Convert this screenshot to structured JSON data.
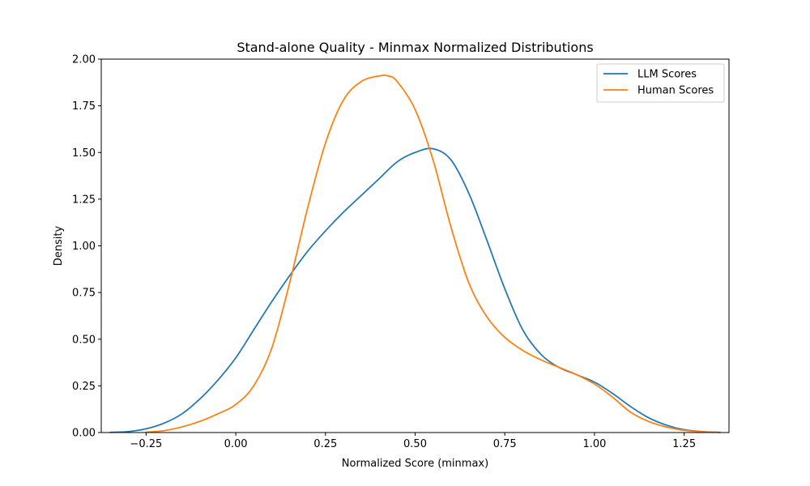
{
  "chart_data": {
    "type": "line",
    "title": "Stand-alone Quality - Minmax Normalized Distributions",
    "xlabel": "Normalized Score (minmax)",
    "ylabel": "Density",
    "xlim": [
      -0.375,
      1.375
    ],
    "ylim": [
      0,
      2.0
    ],
    "xticks": [
      -0.25,
      0.0,
      0.25,
      0.5,
      0.75,
      1.0,
      1.25
    ],
    "xtick_labels": [
      "−0.25",
      "0.00",
      "0.25",
      "0.50",
      "0.75",
      "1.00",
      "1.25"
    ],
    "yticks": [
      0.0,
      0.25,
      0.5,
      0.75,
      1.0,
      1.25,
      1.5,
      1.75,
      2.0
    ],
    "ytick_labels": [
      "0.00",
      "0.25",
      "0.50",
      "0.75",
      "1.00",
      "1.25",
      "1.50",
      "1.75",
      "2.00"
    ],
    "grid": false,
    "legend_position": "top-right",
    "series": [
      {
        "name": "LLM Scores",
        "color": "#1f77b4",
        "x": [
          -0.35,
          -0.3,
          -0.25,
          -0.2,
          -0.15,
          -0.1,
          -0.05,
          0.0,
          0.05,
          0.1,
          0.15,
          0.2,
          0.25,
          0.3,
          0.35,
          0.4,
          0.45,
          0.5,
          0.55,
          0.6,
          0.65,
          0.7,
          0.75,
          0.8,
          0.85,
          0.9,
          0.95,
          1.0,
          1.05,
          1.1,
          1.15,
          1.2,
          1.25,
          1.3,
          1.35
        ],
        "y": [
          0.001,
          0.005,
          0.02,
          0.05,
          0.1,
          0.18,
          0.28,
          0.4,
          0.55,
          0.7,
          0.84,
          0.97,
          1.08,
          1.18,
          1.27,
          1.36,
          1.45,
          1.5,
          1.52,
          1.46,
          1.28,
          1.03,
          0.77,
          0.55,
          0.42,
          0.35,
          0.31,
          0.27,
          0.21,
          0.14,
          0.08,
          0.04,
          0.015,
          0.005,
          0.001
        ]
      },
      {
        "name": "Human Scores",
        "color": "#ff7f0e",
        "x": [
          -0.25,
          -0.2,
          -0.15,
          -0.1,
          -0.05,
          0.0,
          0.05,
          0.1,
          0.15,
          0.2,
          0.25,
          0.3,
          0.35,
          0.4,
          0.425,
          0.45,
          0.5,
          0.55,
          0.6,
          0.65,
          0.7,
          0.75,
          0.8,
          0.85,
          0.9,
          0.95,
          1.0,
          1.05,
          1.1,
          1.15,
          1.2,
          1.25,
          1.3,
          1.35
        ],
        "y": [
          0.002,
          0.01,
          0.03,
          0.06,
          0.1,
          0.15,
          0.25,
          0.45,
          0.8,
          1.2,
          1.55,
          1.78,
          1.88,
          1.91,
          1.91,
          1.88,
          1.73,
          1.46,
          1.1,
          0.8,
          0.62,
          0.51,
          0.44,
          0.39,
          0.35,
          0.31,
          0.26,
          0.19,
          0.11,
          0.06,
          0.03,
          0.012,
          0.004,
          0.001
        ]
      }
    ]
  }
}
